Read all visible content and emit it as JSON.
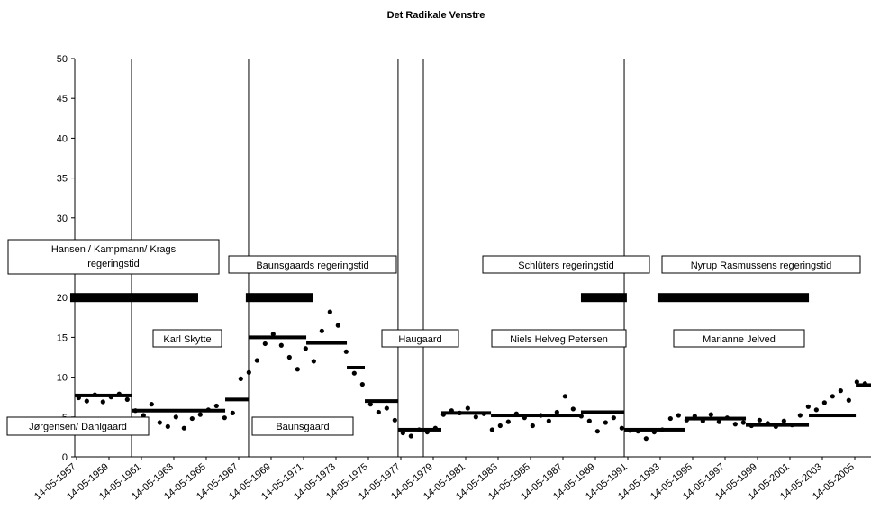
{
  "chart_data": {
    "type": "scatter",
    "title": "Det Radikale Venstre",
    "xlim": [
      1957.26,
      2006.37
    ],
    "ylim": [
      0,
      50
    ],
    "yticks": [
      0,
      5,
      10,
      15,
      20,
      25,
      30,
      35,
      40,
      45,
      50
    ],
    "xticks": [
      {
        "value": 1957.37,
        "label": "14-05-1957"
      },
      {
        "value": 1959.37,
        "label": "14-05-1959"
      },
      {
        "value": 1961.37,
        "label": "14-05-1961"
      },
      {
        "value": 1963.37,
        "label": "14-05-1963"
      },
      {
        "value": 1965.37,
        "label": "14-05-1965"
      },
      {
        "value": 1967.37,
        "label": "14-05-1967"
      },
      {
        "value": 1969.37,
        "label": "14-05-1969"
      },
      {
        "value": 1971.37,
        "label": "14-05-1971"
      },
      {
        "value": 1973.37,
        "label": "14-05-1973"
      },
      {
        "value": 1975.37,
        "label": "14-05-1975"
      },
      {
        "value": 1977.37,
        "label": "14-05-1977"
      },
      {
        "value": 1979.37,
        "label": "14-05-1979"
      },
      {
        "value": 1981.37,
        "label": "14-05-1981"
      },
      {
        "value": 1983.37,
        "label": "14-05-1983"
      },
      {
        "value": 1985.37,
        "label": "14-05-1985"
      },
      {
        "value": 1987.37,
        "label": "14-05-1987"
      },
      {
        "value": 1989.37,
        "label": "14-05-1989"
      },
      {
        "value": 1991.37,
        "label": "14-05-1991"
      },
      {
        "value": 1993.37,
        "label": "14-05-1993"
      },
      {
        "value": 1995.37,
        "label": "14-05-1995"
      },
      {
        "value": 1997.37,
        "label": "14-05-1997"
      },
      {
        "value": 1999.37,
        "label": "14-05-1999"
      },
      {
        "value": 2001.37,
        "label": "14-05-2001"
      },
      {
        "value": 2003.37,
        "label": "14-05-2003"
      },
      {
        "value": 2005.37,
        "label": "14-05-2005"
      }
    ],
    "series": [
      {
        "color": "#000000",
        "x": [
          1957.5,
          1958,
          1958.5,
          1959,
          1959.5,
          1960,
          1960.5,
          1961,
          1961.5,
          1962,
          1962.5,
          1963,
          1963.5,
          1964,
          1964.5,
          1965,
          1965.5,
          1966,
          1966.5,
          1967,
          1967.5,
          1968,
          1968.5,
          1969,
          1969.5,
          1970,
          1970.5,
          1971,
          1971.5,
          1972,
          1972.5,
          1973,
          1973.5,
          1974,
          1974.5,
          1975,
          1975.5,
          1976,
          1976.5,
          1977,
          1977.5,
          1978,
          1978.5,
          1979,
          1979.5,
          1980,
          1980.5,
          1981,
          1981.5,
          1982,
          1982.5,
          1983,
          1983.5,
          1984,
          1984.5,
          1985,
          1985.5,
          1986,
          1986.5,
          1987,
          1987.5,
          1988,
          1988.5,
          1989,
          1989.5,
          1990,
          1990.5,
          1991,
          1991.5,
          1992,
          1992.5,
          1993,
          1993.5,
          1994,
          1994.5,
          1995,
          1995.5,
          1996,
          1996.5,
          1997,
          1997.5,
          1998,
          1998.5,
          1999,
          1999.5,
          2000,
          2000.5,
          2001,
          2001.5,
          2002,
          2002.5,
          2003,
          2003.5,
          2004,
          2004.5,
          2005,
          2005.5,
          2006
        ],
        "values": [
          7.4,
          7.0,
          7.8,
          6.9,
          7.5,
          7.9,
          7.2,
          5.8,
          5.2,
          6.6,
          4.3,
          3.8,
          5.0,
          3.6,
          4.8,
          5.3,
          5.9,
          6.4,
          4.9,
          5.5,
          9.8,
          10.6,
          12.1,
          14.2,
          15.4,
          14.0,
          12.5,
          11.0,
          13.6,
          12.0,
          15.8,
          18.2,
          16.5,
          13.2,
          10.5,
          9.1,
          6.6,
          5.6,
          6.1,
          4.6,
          3.0,
          2.6,
          3.4,
          3.1,
          3.6,
          5.3,
          5.8,
          5.5,
          6.1,
          5.0,
          5.4,
          3.4,
          3.9,
          4.4,
          5.4,
          4.9,
          3.9,
          5.2,
          4.5,
          5.6,
          7.6,
          6.0,
          5.1,
          4.5,
          3.2,
          4.3,
          4.9,
          3.6,
          3.3,
          3.2,
          2.3,
          3.1,
          3.4,
          4.8,
          5.2,
          4.6,
          5.1,
          4.5,
          5.3,
          4.4,
          4.9,
          4.1,
          4.3,
          3.9,
          4.6,
          4.2,
          3.8,
          4.5,
          4.0,
          5.2,
          6.3,
          5.9,
          6.8,
          7.6,
          8.3,
          7.1,
          9.4,
          9.2
        ]
      }
    ],
    "segments": {
      "x_start": [
        1957.26,
        1960.76,
        1966.54,
        1967.98,
        1971.54,
        1974.04,
        1975.15,
        1977.2,
        1979.87,
        1982.93,
        1988.48,
        1991.15,
        1994.87,
        1998.65,
        2002.54,
        2005.43
      ],
      "x_end": [
        1960.76,
        1966.54,
        1967.98,
        1971.54,
        1974.04,
        1975.15,
        1977.2,
        1979.87,
        1982.93,
        1988.48,
        1991.15,
        1994.87,
        1998.65,
        2002.54,
        2005.43,
        2006.37
      ],
      "values": [
        7.7,
        5.8,
        7.2,
        15.0,
        14.3,
        11.2,
        7.0,
        3.4,
        5.5,
        5.2,
        5.6,
        3.4,
        4.8,
        4.0,
        5.2,
        9.0
      ]
    },
    "government_bars": {
      "value": 20,
      "x_start": [
        1956.98,
        1967.81,
        1988.48,
        1993.2
      ],
      "x_end": [
        1964.87,
        1971.98,
        1991.31,
        2002.54
      ]
    },
    "vlines": [
      1960.76,
      1967.98,
      1977.2,
      1978.76,
      1991.15
    ],
    "annotations": [
      [
        "Hansen / Kampmann/ Krags",
        "regeringstid"
      ],
      [
        "Baunsgaards regeringstid"
      ],
      [
        "Schlüters regeringstid"
      ],
      [
        "Nyrup Rasmussens regeringstid"
      ],
      [
        "Karl Skytte"
      ],
      [
        "Haugaard"
      ],
      [
        "Niels Helveg Petersen"
      ],
      [
        "Marianne Jelved"
      ],
      [
        "Jørgensen/ Dahlgaard"
      ],
      [
        "Baunsgaard"
      ]
    ]
  }
}
